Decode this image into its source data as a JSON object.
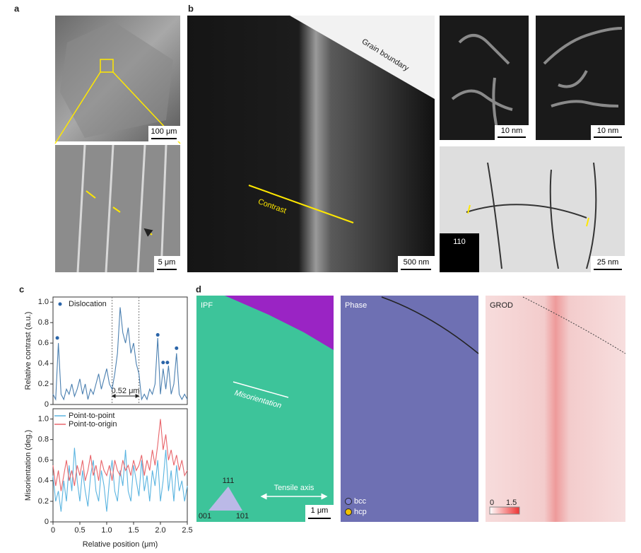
{
  "panels": {
    "a": {
      "label": "a",
      "scale_top": "100 μm",
      "scale_bottom": "5 μm"
    },
    "b": {
      "label": "b",
      "grain_boundary": "Grain boundary",
      "contrast": "Contrast",
      "scale_main": "500 nm",
      "scale_small_1": "10 nm",
      "scale_small_2": "10 nm",
      "diffraction": "110",
      "scale_wide": "25 nm"
    },
    "c": {
      "label": "c"
    },
    "d": {
      "label": "d",
      "ipf": "IPF",
      "misorientation": "Misorientation",
      "tensile_axis": "Tensile axis",
      "tri_top": "111",
      "tri_left": "001",
      "tri_right": "101",
      "scale": "1 μm",
      "phase": "Phase",
      "bcc": "bcc",
      "hcp": "hcp",
      "grod": "GROD",
      "grod_min": "0",
      "grod_max": "1.5"
    }
  },
  "chart_data": [
    {
      "type": "line",
      "ylabel": "Relative contrast (a.u.)",
      "xlim": [
        0,
        2.5
      ],
      "ylim": [
        0,
        1.05
      ],
      "yticks": [
        0,
        0.2,
        0.4,
        0.6,
        0.8,
        {
          "value": 1,
          "label": "1.0"
        }
      ],
      "x": [
        0,
        0.05,
        0.1,
        0.15,
        0.2,
        0.25,
        0.3,
        0.35,
        0.4,
        0.45,
        0.5,
        0.55,
        0.6,
        0.65,
        0.7,
        0.75,
        0.8,
        0.85,
        0.9,
        0.95,
        1,
        1.05,
        1.1,
        1.15,
        1.2,
        1.25,
        1.3,
        1.35,
        1.4,
        1.45,
        1.5,
        1.55,
        1.6,
        1.65,
        1.7,
        1.75,
        1.8,
        1.85,
        1.9,
        1.95,
        2,
        2.05,
        2.1,
        2.15,
        2.2,
        2.25,
        2.3,
        2.35,
        2.4,
        2.45,
        2.5
      ],
      "vlines": [
        1.1,
        1.6
      ],
      "annotation": "0.52 μm",
      "legend": "upper left",
      "series": [
        {
          "color": "#4a7fb0",
          "values": [
            0.1,
            0.05,
            0.6,
            0.1,
            0.05,
            0.15,
            0.1,
            0.2,
            0.08,
            0.15,
            0.25,
            0.1,
            0.2,
            0.05,
            0.15,
            0.1,
            0.2,
            0.3,
            0.15,
            0.25,
            0.35,
            0.2,
            0.15,
            0.3,
            0.5,
            0.95,
            0.7,
            0.6,
            0.75,
            0.5,
            0.6,
            0.4,
            0.3,
            0.05,
            0.1,
            0.05,
            0.15,
            0.1,
            0.2,
            0.65,
            0.1,
            0.35,
            0.15,
            0.38,
            0.1,
            0.2,
            0.5,
            0.1,
            0.05,
            0.1,
            0.05
          ]
        },
        {
          "name": "Dislocation",
          "type": "scatter",
          "color": "#2a64a8",
          "x": [
            0.08,
            1.95,
            2.05,
            2.13,
            2.3
          ],
          "values": [
            0.65,
            0.68,
            0.41,
            0.41,
            0.55
          ]
        }
      ]
    },
    {
      "type": "line",
      "ylabel": "Misorientation (deg.)",
      "xlabel": "Relative position (μm)",
      "xlim": [
        0,
        2.5
      ],
      "ylim": [
        0,
        1.1
      ],
      "xticks": [
        0,
        0.5,
        {
          "value": 1,
          "label": "1.0"
        },
        1.5,
        {
          "value": 2,
          "label": "2.0"
        },
        2.5
      ],
      "yticks": [
        0,
        0.2,
        0.4,
        0.6,
        0.8,
        {
          "value": 1,
          "label": "1.0"
        }
      ],
      "x": [
        0,
        0.05,
        0.1,
        0.15,
        0.2,
        0.25,
        0.3,
        0.35,
        0.4,
        0.45,
        0.5,
        0.55,
        0.6,
        0.65,
        0.7,
        0.75,
        0.8,
        0.85,
        0.9,
        0.95,
        1,
        1.05,
        1.1,
        1.15,
        1.2,
        1.25,
        1.3,
        1.35,
        1.4,
        1.45,
        1.5,
        1.55,
        1.6,
        1.65,
        1.7,
        1.75,
        1.8,
        1.85,
        1.9,
        1.95,
        2,
        2.05,
        2.1,
        2.15,
        2.2,
        2.25,
        2.3,
        2.35,
        2.4,
        2.45,
        2.5
      ],
      "legend": "upper left",
      "series": [
        {
          "name": "Point-to-point",
          "color": "#5ab4e0",
          "values": [
            0.45,
            0.2,
            0.3,
            0.1,
            0.4,
            0.2,
            0.55,
            0.3,
            0.72,
            0.4,
            0.2,
            0.5,
            0.3,
            0.15,
            0.45,
            0.6,
            0.3,
            0.2,
            0.5,
            0.35,
            0.1,
            0.4,
            0.6,
            0.3,
            0.2,
            0.5,
            0.35,
            0.7,
            0.3,
            0.2,
            0.55,
            0.4,
            0.25,
            0.6,
            0.3,
            0.45,
            0.2,
            0.5,
            0.35,
            0.6,
            0.2,
            0.4,
            0.7,
            0.3,
            0.5,
            0.2,
            0.55,
            0.3,
            0.4,
            0.2,
            0.35
          ]
        },
        {
          "name": "Point-to-origin",
          "color": "#e8646a",
          "values": [
            0.55,
            0.35,
            0.5,
            0.3,
            0.45,
            0.6,
            0.4,
            0.5,
            0.35,
            0.55,
            0.45,
            0.6,
            0.4,
            0.5,
            0.65,
            0.45,
            0.55,
            0.4,
            0.6,
            0.5,
            0.45,
            0.55,
            0.4,
            0.6,
            0.5,
            0.45,
            0.6,
            0.5,
            0.55,
            0.45,
            0.6,
            0.5,
            0.55,
            0.65,
            0.45,
            0.6,
            0.5,
            0.7,
            0.55,
            0.75,
            1.0,
            0.7,
            0.85,
            0.6,
            0.7,
            0.55,
            0.65,
            0.5,
            0.6,
            0.45,
            0.5
          ]
        }
      ]
    }
  ]
}
